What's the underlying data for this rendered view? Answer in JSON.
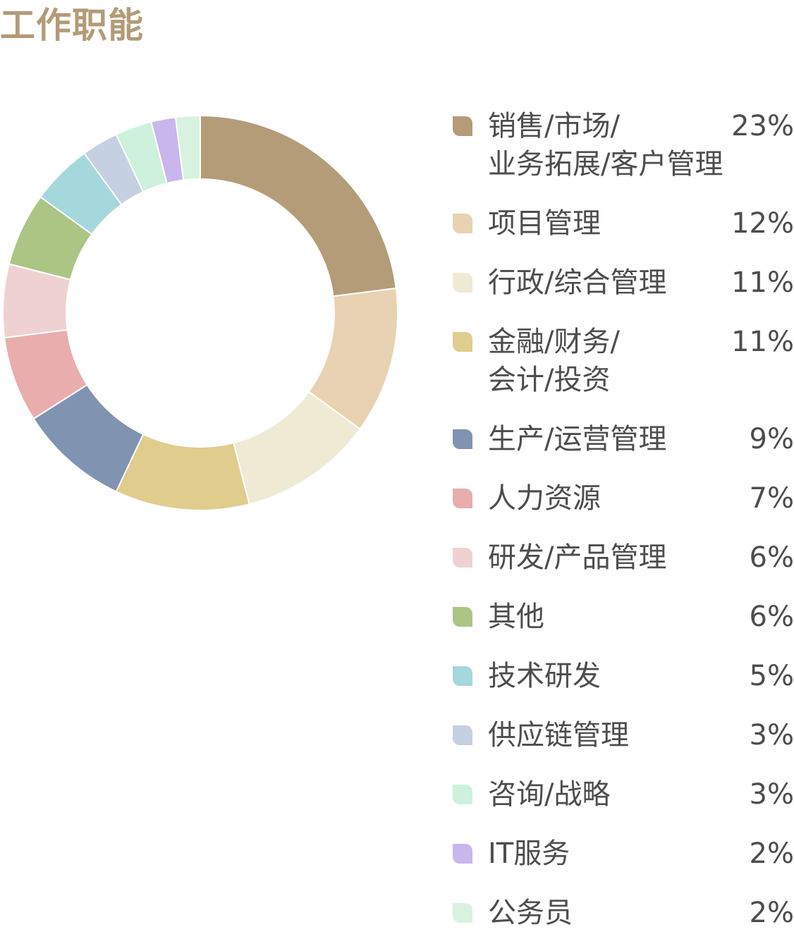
{
  "chart_data": {
    "type": "pie",
    "title": "工作职能",
    "categories": [
      "销售/市场/\n业务拓展/客户管理",
      "项目管理",
      "行政/综合管理",
      "金融/财务/\n会计/投资",
      "生产/运营管理",
      "人力资源",
      "研发/产品管理",
      "其他",
      "技术研发",
      "供应链管理",
      "咨询/战略",
      "IT服务",
      "公务员"
    ],
    "values": [
      23,
      12,
      11,
      11,
      9,
      7,
      6,
      6,
      5,
      3,
      3,
      2,
      2
    ],
    "labels": [
      "23%",
      "12%",
      "11%",
      "11%",
      "9%",
      "7%",
      "6%",
      "6%",
      "5%",
      "3%",
      "3%",
      "2%",
      "2%"
    ],
    "colors": [
      "#b49c79",
      "#e8d2b2",
      "#efead4",
      "#e0cd8d",
      "#8093b1",
      "#e9adad",
      "#efd1d2",
      "#abc584",
      "#a5d8dc",
      "#c6d0e3",
      "#cdf1dd",
      "#c9b6ec",
      "#d8f2df"
    ],
    "legend": "right"
  }
}
